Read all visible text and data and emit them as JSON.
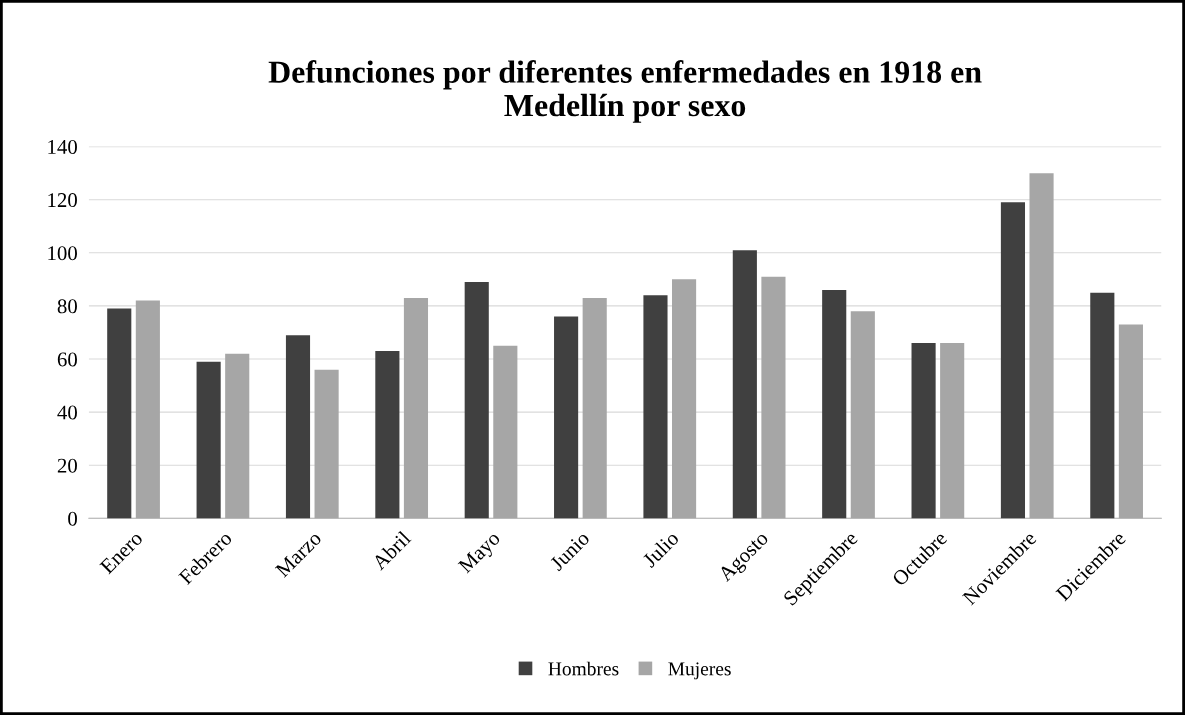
{
  "chart_data": {
    "type": "bar",
    "title": "Defunciones por diferentes enfermedades en 1918 en\nMedellín por sexo",
    "categories": [
      "Enero",
      "Febrero",
      "Marzo",
      "Abril",
      "Mayo",
      "Junio",
      "Julio",
      "Agosto",
      "Septiembre",
      "Octubre",
      "Noviembre",
      "Diciembre"
    ],
    "series": [
      {
        "name": "Hombres",
        "color": "#404040",
        "values": [
          79,
          59,
          69,
          63,
          89,
          76,
          84,
          101,
          86,
          66,
          119,
          85
        ]
      },
      {
        "name": "Mujeres",
        "color": "#a6a6a6",
        "values": [
          82,
          62,
          56,
          83,
          65,
          83,
          90,
          91,
          78,
          66,
          130,
          73
        ]
      }
    ],
    "ylim": [
      0,
      140
    ],
    "yticks": [
      0,
      20,
      40,
      60,
      80,
      100,
      120,
      140
    ],
    "grid": "y",
    "legend": "bottom"
  }
}
